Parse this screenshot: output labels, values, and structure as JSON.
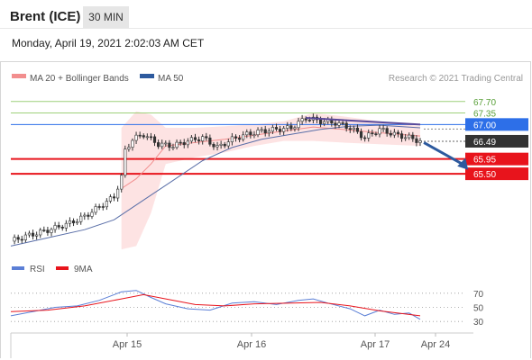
{
  "header": {
    "instrument": "Brent (ICE)",
    "timeframe": "30 MIN",
    "timestamp": "Monday, April 19, 2021 2:02:03 AM CET"
  },
  "legend": {
    "items": [
      {
        "label": "MA 20 + Bollinger Bands",
        "color": "#f28e8e"
      },
      {
        "label": "MA 50",
        "color": "#2d5a9e"
      }
    ],
    "credit": "Research © 2021 Trading Central"
  },
  "colors": {
    "resistance_green": "#9ed07a",
    "pivot_blue": "#2d6fe8",
    "support_red": "#e8141c",
    "current_dark": "#333333",
    "candle": "#333333",
    "band_fill": "#fde0e0",
    "ma20": "#f28e8e",
    "ma50": "#5a6fa8",
    "rsi": "#5b7fd6",
    "rsi_ma": "#e8141c",
    "arrow": "#2d5a9e",
    "trendline": "#5a4a9a"
  },
  "chart_data": [
    {
      "type": "candlestick",
      "title": "Brent (ICE)",
      "x_tick_labels": [
        "Apr 15",
        "Apr 16",
        "Apr 17",
        "Apr 24"
      ],
      "ylim": [
        63.12,
        68.05
      ],
      "levels": [
        {
          "label": "67.70",
          "value": 67.7,
          "kind": "resistance",
          "color": "#9ed07a"
        },
        {
          "label": "67.35",
          "value": 67.35,
          "kind": "resistance",
          "color": "#9ed07a"
        },
        {
          "label": "67.00",
          "value": 67.0,
          "kind": "pivot",
          "color": "#2d6fe8"
        },
        {
          "label": "66.49",
          "value": 66.49,
          "kind": "last_price",
          "color": "#333333"
        },
        {
          "label": "65.95",
          "value": 65.95,
          "kind": "support",
          "color": "#e8141c"
        },
        {
          "label": "65.50",
          "value": 65.5,
          "kind": "support",
          "color": "#e8141c"
        }
      ],
      "close_series": [
        {
          "t": 0,
          "v": 63.45
        },
        {
          "t": 4,
          "v": 63.6
        },
        {
          "t": 8,
          "v": 63.72
        },
        {
          "t": 12,
          "v": 63.85
        },
        {
          "t": 16,
          "v": 64.0
        },
        {
          "t": 20,
          "v": 64.2
        },
        {
          "t": 24,
          "v": 64.5
        },
        {
          "t": 28,
          "v": 64.8
        },
        {
          "t": 30,
          "v": 65.4
        },
        {
          "t": 31,
          "v": 66.2
        },
        {
          "t": 33,
          "v": 66.55
        },
        {
          "t": 36,
          "v": 66.7
        },
        {
          "t": 40,
          "v": 66.4
        },
        {
          "t": 44,
          "v": 66.35
        },
        {
          "t": 48,
          "v": 66.5
        },
        {
          "t": 52,
          "v": 66.6
        },
        {
          "t": 56,
          "v": 66.3
        },
        {
          "t": 60,
          "v": 66.55
        },
        {
          "t": 64,
          "v": 66.7
        },
        {
          "t": 68,
          "v": 66.8
        },
        {
          "t": 72,
          "v": 66.85
        },
        {
          "t": 76,
          "v": 66.9
        },
        {
          "t": 80,
          "v": 67.2
        },
        {
          "t": 84,
          "v": 67.1
        },
        {
          "t": 88,
          "v": 67.05
        },
        {
          "t": 92,
          "v": 66.9
        },
        {
          "t": 96,
          "v": 66.6
        },
        {
          "t": 100,
          "v": 66.85
        },
        {
          "t": 104,
          "v": 66.7
        },
        {
          "t": 108,
          "v": 66.6
        },
        {
          "t": 111,
          "v": 66.49
        }
      ],
      "ma50_series": [
        {
          "t": 0,
          "v": 63.3
        },
        {
          "t": 10,
          "v": 63.55
        },
        {
          "t": 20,
          "v": 63.8
        },
        {
          "t": 28,
          "v": 64.1
        },
        {
          "t": 36,
          "v": 64.7
        },
        {
          "t": 44,
          "v": 65.3
        },
        {
          "t": 52,
          "v": 65.9
        },
        {
          "t": 60,
          "v": 66.3
        },
        {
          "t": 68,
          "v": 66.55
        },
        {
          "t": 76,
          "v": 66.7
        },
        {
          "t": 84,
          "v": 66.85
        },
        {
          "t": 92,
          "v": 66.95
        },
        {
          "t": 100,
          "v": 66.98
        },
        {
          "t": 111,
          "v": 66.9
        }
      ],
      "bollinger_upper": [
        {
          "t": 30,
          "v": 66.9
        },
        {
          "t": 34,
          "v": 67.4
        },
        {
          "t": 38,
          "v": 67.3
        },
        {
          "t": 42,
          "v": 66.9
        },
        {
          "t": 50,
          "v": 66.9
        },
        {
          "t": 58,
          "v": 66.95
        },
        {
          "t": 66,
          "v": 67.0
        },
        {
          "t": 74,
          "v": 67.1
        },
        {
          "t": 82,
          "v": 67.35
        },
        {
          "t": 90,
          "v": 67.25
        },
        {
          "t": 100,
          "v": 67.1
        },
        {
          "t": 111,
          "v": 66.95
        }
      ],
      "bollinger_lower": [
        {
          "t": 30,
          "v": 63.2
        },
        {
          "t": 34,
          "v": 63.3
        },
        {
          "t": 38,
          "v": 64.3
        },
        {
          "t": 42,
          "v": 65.8
        },
        {
          "t": 50,
          "v": 66.0
        },
        {
          "t": 58,
          "v": 66.15
        },
        {
          "t": 66,
          "v": 66.35
        },
        {
          "t": 74,
          "v": 66.5
        },
        {
          "t": 82,
          "v": 66.5
        },
        {
          "t": 90,
          "v": 66.45
        },
        {
          "t": 100,
          "v": 66.4
        },
        {
          "t": 111,
          "v": 66.35
        }
      ],
      "trendlines": [
        {
          "name": "resistance_trend",
          "from": {
            "t": 80,
            "v": 67.2
          },
          "to": {
            "t": 111,
            "v": 67.0
          }
        }
      ],
      "projection": {
        "direction": "down",
        "from": {
          "t": 112,
          "v": 66.45
        },
        "to": {
          "t": 124,
          "v": 65.95
        }
      }
    },
    {
      "type": "line",
      "title": "",
      "legend": [
        {
          "label": "RSI",
          "color": "#5b7fd6"
        },
        {
          "label": "9MA",
          "color": "#e8141c"
        }
      ],
      "ylim": [
        20,
        80
      ],
      "y_ticks": [
        70,
        50,
        30
      ],
      "reference_lines": [
        70,
        50,
        30
      ],
      "rsi_series": [
        {
          "t": 0,
          "v": 38
        },
        {
          "t": 6,
          "v": 44
        },
        {
          "t": 12,
          "v": 50
        },
        {
          "t": 18,
          "v": 52
        },
        {
          "t": 24,
          "v": 60
        },
        {
          "t": 30,
          "v": 72
        },
        {
          "t": 34,
          "v": 74
        },
        {
          "t": 38,
          "v": 64
        },
        {
          "t": 42,
          "v": 55
        },
        {
          "t": 48,
          "v": 48
        },
        {
          "t": 54,
          "v": 46
        },
        {
          "t": 60,
          "v": 56
        },
        {
          "t": 66,
          "v": 58
        },
        {
          "t": 72,
          "v": 54
        },
        {
          "t": 78,
          "v": 60
        },
        {
          "t": 82,
          "v": 62
        },
        {
          "t": 86,
          "v": 56
        },
        {
          "t": 92,
          "v": 48
        },
        {
          "t": 96,
          "v": 38
        },
        {
          "t": 100,
          "v": 46
        },
        {
          "t": 104,
          "v": 40
        },
        {
          "t": 108,
          "v": 42
        },
        {
          "t": 111,
          "v": 33
        }
      ],
      "ma9_series": [
        {
          "t": 0,
          "v": 44
        },
        {
          "t": 10,
          "v": 46
        },
        {
          "t": 20,
          "v": 52
        },
        {
          "t": 30,
          "v": 62
        },
        {
          "t": 36,
          "v": 68
        },
        {
          "t": 42,
          "v": 62
        },
        {
          "t": 50,
          "v": 54
        },
        {
          "t": 58,
          "v": 52
        },
        {
          "t": 66,
          "v": 55
        },
        {
          "t": 76,
          "v": 56
        },
        {
          "t": 84,
          "v": 57
        },
        {
          "t": 92,
          "v": 52
        },
        {
          "t": 100,
          "v": 45
        },
        {
          "t": 111,
          "v": 38
        }
      ]
    }
  ]
}
